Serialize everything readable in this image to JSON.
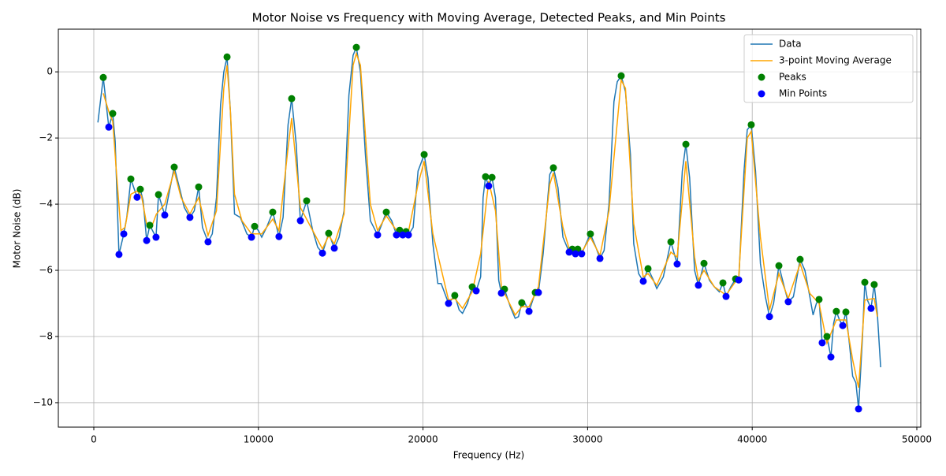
{
  "chart_data": {
    "type": "line",
    "title": "Motor Noise vs Frequency with Moving Average, Detected Peaks, and Min Points",
    "x_label": "Frequency (Hz)",
    "y_label": "Motor Noise (dB)",
    "xlim": [
      -2155,
      50240
    ],
    "ylim": [
      -10.74,
      1.29
    ],
    "xticks": [
      0,
      10000,
      20000,
      30000,
      40000,
      50000
    ],
    "yticks": [
      {
        "value": 0,
        "label": "0"
      },
      {
        "value": -2,
        "label": "−2"
      },
      {
        "value": -4,
        "label": "−4"
      },
      {
        "value": -6,
        "label": "−6"
      },
      {
        "value": -8,
        "label": "−8"
      },
      {
        "value": -10,
        "label": "−10"
      }
    ],
    "grid": true,
    "legend": "upper right",
    "series": [
      {
        "name": "Data",
        "kind": "line",
        "color": "#1f77b4",
        "x": [
          250,
          575,
          910,
          1150,
          1300,
          1530,
          1820,
          2000,
          2250,
          2630,
          2825,
          3000,
          3210,
          3400,
          3780,
          3930,
          4310,
          4600,
          4885,
          5200,
          5500,
          5840,
          6100,
          6370,
          6600,
          6940,
          7200,
          7450,
          7700,
          7900,
          8095,
          8300,
          8550,
          8900,
          9300,
          9580,
          9770,
          10000,
          10200,
          10500,
          10870,
          11250,
          11500,
          11800,
          12020,
          12300,
          12550,
          12930,
          13300,
          13600,
          13890,
          14270,
          14610,
          14900,
          15200,
          15500,
          15750,
          15950,
          16200,
          16500,
          16800,
          17240,
          17500,
          17770,
          18100,
          18390,
          18580,
          18770,
          18970,
          19110,
          19400,
          19700,
          20070,
          20300,
          20600,
          20900,
          21100,
          21550,
          21930,
          22200,
          22400,
          22700,
          22990,
          23230,
          23500,
          23650,
          23800,
          23990,
          24190,
          24400,
          24600,
          24760,
          24950,
          25300,
          25600,
          25800,
          26000,
          26200,
          26440,
          26820,
          27010,
          27300,
          27700,
          27920,
          28200,
          28500,
          28880,
          29070,
          29260,
          29400,
          29640,
          29900,
          30170,
          30500,
          30750,
          31000,
          31300,
          31600,
          31800,
          32040,
          32300,
          32600,
          32800,
          33100,
          33380,
          33670,
          34000,
          34200,
          34600,
          35060,
          35440,
          35750,
          35970,
          36200,
          36500,
          36730,
          37070,
          37400,
          37700,
          38000,
          38220,
          38410,
          38700,
          38990,
          39180,
          39500,
          39700,
          39940,
          40200,
          40500,
          40800,
          41050,
          41300,
          41620,
          42000,
          42190,
          42500,
          42910,
          43200,
          43500,
          43700,
          43900,
          44060,
          44250,
          44540,
          44780,
          44950,
          45110,
          45300,
          45500,
          45690,
          45900,
          46100,
          46300,
          46460,
          46700,
          46840,
          47000,
          47220,
          47410,
          47600,
          47800
        ],
        "values": [
          -1.53,
          -0.17,
          -1.67,
          -1.26,
          -2.1,
          -5.52,
          -4.9,
          -4.4,
          -3.24,
          -3.79,
          -3.55,
          -3.9,
          -5.1,
          -4.64,
          -5.0,
          -3.71,
          -4.33,
          -3.6,
          -2.88,
          -3.5,
          -4.1,
          -4.4,
          -4.2,
          -3.48,
          -4.7,
          -5.14,
          -4.9,
          -3.8,
          -1.0,
          0.0,
          0.45,
          -1.2,
          -4.3,
          -4.4,
          -4.9,
          -5.0,
          -4.67,
          -4.8,
          -5.0,
          -4.7,
          -4.24,
          -4.98,
          -4.4,
          -1.6,
          -0.81,
          -2.2,
          -4.5,
          -3.9,
          -4.8,
          -5.3,
          -5.48,
          -4.88,
          -5.33,
          -5.0,
          -4.2,
          -0.7,
          0.5,
          0.74,
          0.0,
          -2.5,
          -4.5,
          -4.93,
          -4.6,
          -4.24,
          -4.5,
          -4.93,
          -4.79,
          -4.93,
          -4.83,
          -4.93,
          -4.7,
          -3.0,
          -2.5,
          -3.2,
          -5.2,
          -6.4,
          -6.4,
          -7.0,
          -6.76,
          -7.2,
          -7.3,
          -7.0,
          -6.5,
          -6.62,
          -6.2,
          -3.8,
          -3.17,
          -3.45,
          -3.19,
          -3.8,
          -6.3,
          -6.69,
          -6.57,
          -7.1,
          -7.45,
          -7.4,
          -6.98,
          -7.0,
          -7.24,
          -6.67,
          -6.67,
          -5.5,
          -3.1,
          -2.9,
          -3.5,
          -5.0,
          -5.45,
          -5.36,
          -5.5,
          -5.36,
          -5.5,
          -5.2,
          -4.9,
          -5.3,
          -5.64,
          -5.4,
          -4.0,
          -0.9,
          -0.3,
          -0.12,
          -0.6,
          -2.5,
          -5.2,
          -6.1,
          -6.33,
          -5.95,
          -6.3,
          -6.55,
          -6.2,
          -5.14,
          -5.81,
          -3.0,
          -2.19,
          -3.2,
          -6.0,
          -6.45,
          -5.79,
          -6.3,
          -6.5,
          -6.65,
          -6.38,
          -6.79,
          -6.5,
          -6.26,
          -6.29,
          -3.0,
          -1.75,
          -1.6,
          -3.0,
          -5.8,
          -6.8,
          -7.4,
          -7.0,
          -5.86,
          -6.6,
          -6.95,
          -6.8,
          -5.67,
          -6.0,
          -6.8,
          -7.35,
          -7.0,
          -6.88,
          -8.19,
          -8.0,
          -8.62,
          -7.6,
          -7.24,
          -7.5,
          -7.67,
          -7.26,
          -8.2,
          -9.2,
          -9.4,
          -10.19,
          -8.0,
          -6.36,
          -6.9,
          -7.15,
          -6.43,
          -7.3,
          -8.93
        ]
      },
      {
        "name": "3-point Moving Average",
        "kind": "line",
        "color": "#ffa500",
        "x": [
          575,
          910,
          1150,
          1400,
          1650,
          1900,
          2250,
          2630,
          2900,
          3210,
          3500,
          3800,
          4310,
          4885,
          5300,
          5840,
          6370,
          6940,
          7450,
          7900,
          8095,
          8300,
          8550,
          9000,
          9580,
          10200,
          10870,
          11250,
          11800,
          12020,
          12550,
          13300,
          13890,
          14270,
          14610,
          15200,
          15750,
          15950,
          16200,
          16800,
          17240,
          17770,
          18390,
          19110,
          19700,
          20070,
          20600,
          21550,
          21930,
          22400,
          22990,
          23500,
          23990,
          24400,
          24760,
          25600,
          26000,
          26440,
          27010,
          27700,
          27920,
          28500,
          28880,
          29640,
          30170,
          30750,
          31300,
          32040,
          32300,
          32800,
          33380,
          33670,
          34200,
          35060,
          35440,
          35970,
          36500,
          36730,
          37070,
          37700,
          38410,
          39180,
          39700,
          39940,
          40500,
          41050,
          41620,
          42190,
          42910,
          43500,
          44060,
          44540,
          45110,
          45690,
          46100,
          46460,
          46840,
          47410,
          47600
        ],
        "values": [
          -0.65,
          -1.2,
          -1.5,
          -3.2,
          -4.8,
          -4.7,
          -3.7,
          -3.6,
          -3.75,
          -4.6,
          -4.7,
          -4.3,
          -4.0,
          -3.0,
          -3.8,
          -4.3,
          -3.8,
          -4.95,
          -4.2,
          -0.5,
          0.2,
          -1.2,
          -3.7,
          -4.5,
          -4.9,
          -4.9,
          -4.45,
          -4.8,
          -2.3,
          -1.4,
          -4.1,
          -4.8,
          -5.35,
          -4.95,
          -5.2,
          -4.3,
          0.2,
          0.55,
          0.2,
          -4.0,
          -4.8,
          -4.35,
          -4.8,
          -4.85,
          -3.4,
          -2.7,
          -4.9,
          -6.9,
          -6.85,
          -7.15,
          -6.65,
          -5.5,
          -3.3,
          -4.2,
          -6.5,
          -7.35,
          -7.1,
          -7.1,
          -6.5,
          -3.4,
          -3.05,
          -4.7,
          -5.35,
          -5.45,
          -5.0,
          -5.55,
          -4.2,
          -0.25,
          -0.5,
          -4.6,
          -6.2,
          -6.1,
          -6.45,
          -5.45,
          -5.6,
          -2.7,
          -5.6,
          -6.3,
          -6.0,
          -6.5,
          -6.75,
          -6.2,
          -2.0,
          -1.8,
          -5.0,
          -7.2,
          -6.1,
          -6.85,
          -5.8,
          -6.7,
          -7.0,
          -8.2,
          -7.5,
          -7.5,
          -8.7,
          -9.55,
          -6.9,
          -6.85,
          -7.4
        ]
      },
      {
        "name": "Peaks",
        "kind": "scatter",
        "color": "#008000",
        "x": [
          575,
          1150,
          2250,
          2825,
          3400,
          3930,
          4885,
          6370,
          8095,
          9770,
          10870,
          12020,
          12930,
          14270,
          15950,
          17770,
          18580,
          18970,
          20070,
          21930,
          22990,
          23800,
          24190,
          24950,
          26000,
          26820,
          27920,
          29070,
          29400,
          30170,
          32040,
          33670,
          35060,
          35970,
          37070,
          38220,
          38990,
          39940,
          41620,
          42910,
          44060,
          44540,
          45110,
          45690,
          46840,
          47410
        ],
        "values": [
          -0.17,
          -1.26,
          -3.24,
          -3.55,
          -4.64,
          -3.71,
          -2.88,
          -3.48,
          0.45,
          -4.67,
          -4.24,
          -0.81,
          -3.9,
          -4.88,
          0.74,
          -4.24,
          -4.79,
          -4.83,
          -2.5,
          -6.76,
          -6.5,
          -3.17,
          -3.19,
          -6.57,
          -6.98,
          -6.67,
          -2.9,
          -5.36,
          -5.36,
          -4.9,
          -0.12,
          -5.95,
          -5.14,
          -2.19,
          -5.79,
          -6.38,
          -6.26,
          -1.6,
          -5.86,
          -5.67,
          -6.88,
          -8.0,
          -7.24,
          -7.26,
          -6.36,
          -6.43
        ]
      },
      {
        "name": "Min Points",
        "kind": "scatter",
        "color": "#0000ff",
        "x": [
          910,
          1530,
          1820,
          2630,
          3210,
          3780,
          4310,
          5840,
          6940,
          9580,
          11250,
          12550,
          13890,
          14610,
          17240,
          18390,
          18770,
          19110,
          21550,
          23230,
          23990,
          24760,
          26440,
          27010,
          28880,
          29260,
          29640,
          30750,
          33380,
          35440,
          36730,
          38410,
          39180,
          41050,
          42190,
          44250,
          44780,
          45500,
          46460,
          47220
        ],
        "values": [
          -1.67,
          -5.52,
          -4.9,
          -3.79,
          -5.1,
          -5.0,
          -4.33,
          -4.4,
          -5.14,
          -5.0,
          -4.98,
          -4.5,
          -5.48,
          -5.33,
          -4.93,
          -4.93,
          -4.93,
          -4.93,
          -7.0,
          -6.62,
          -3.45,
          -6.69,
          -7.24,
          -6.67,
          -5.45,
          -5.5,
          -5.5,
          -5.64,
          -6.33,
          -5.81,
          -6.45,
          -6.79,
          -6.29,
          -7.4,
          -6.95,
          -8.19,
          -8.62,
          -7.67,
          -10.19,
          -7.15
        ]
      }
    ]
  }
}
